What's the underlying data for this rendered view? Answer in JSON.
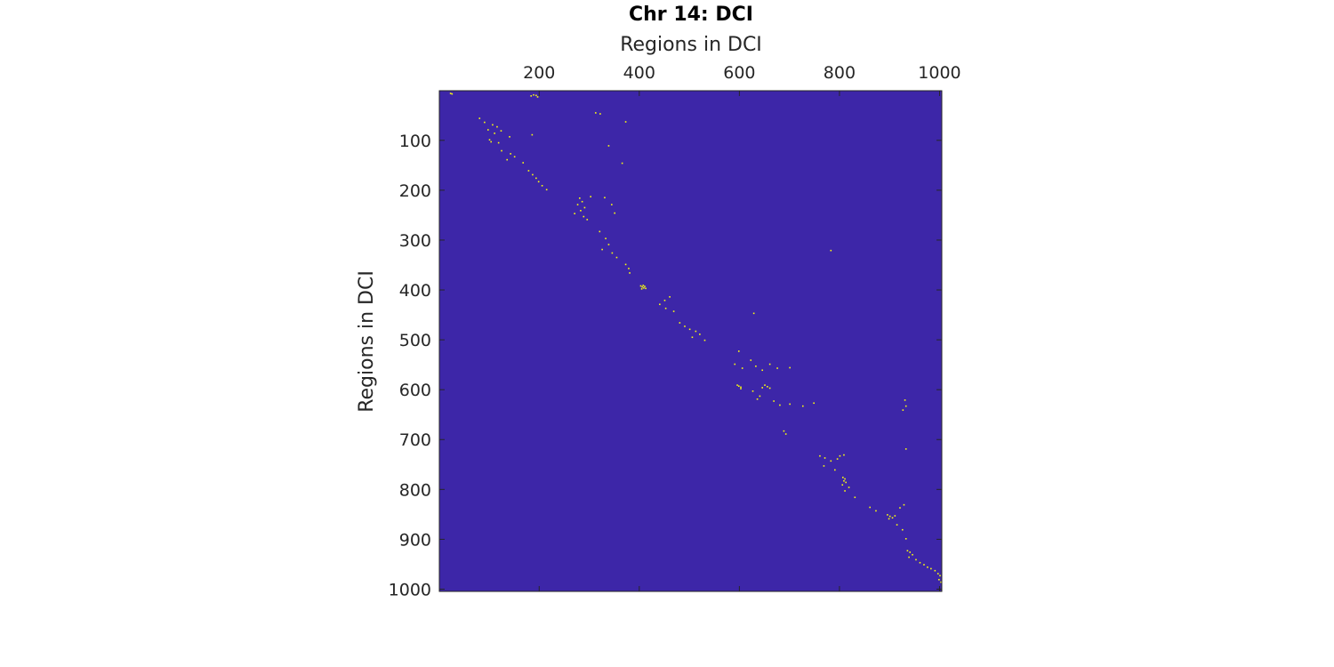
{
  "chart_data": {
    "type": "heatmap",
    "title": "Chr 14: DCI",
    "xlabel": "Regions in DCI",
    "ylabel": "Regions in DCI",
    "x_axis_location": "top",
    "y_axis_direction": "reverse",
    "xlim": [
      0.5,
      1004.5
    ],
    "ylim": [
      0.5,
      1004.5
    ],
    "x_ticks": [
      200,
      400,
      600,
      800,
      1000
    ],
    "x_tick_labels": [
      "200",
      "400",
      "600",
      "800",
      "1000"
    ],
    "y_ticks": [
      100,
      200,
      300,
      400,
      500,
      600,
      700,
      800,
      900,
      1000
    ],
    "y_tick_labels": [
      "100",
      "200",
      "300",
      "400",
      "500",
      "600",
      "700",
      "800",
      "900",
      "1000"
    ],
    "background_value": 0,
    "highlight_value": 1,
    "colors": {
      "background": "#3d26a8",
      "highlight": "#f9fb0e",
      "axis": "#262626"
    },
    "grid": false,
    "legend": "none",
    "highlighted_cells": [
      [
        22,
        5
      ],
      [
        25,
        6
      ],
      [
        188,
        8
      ],
      [
        193,
        9
      ],
      [
        183,
        10
      ],
      [
        196,
        12
      ],
      [
        312,
        44
      ],
      [
        321,
        46
      ],
      [
        80,
        55
      ],
      [
        90,
        63
      ],
      [
        106,
        68
      ],
      [
        115,
        72
      ],
      [
        97,
        78
      ],
      [
        123,
        80
      ],
      [
        110,
        85
      ],
      [
        140,
        92
      ],
      [
        100,
        98
      ],
      [
        103,
        102
      ],
      [
        118,
        104
      ],
      [
        185,
        88
      ],
      [
        372,
        62
      ],
      [
        124,
        120
      ],
      [
        142,
        126
      ],
      [
        150,
        132
      ],
      [
        135,
        138
      ],
      [
        167,
        144
      ],
      [
        338,
        110
      ],
      [
        365,
        145
      ],
      [
        178,
        160
      ],
      [
        186,
        168
      ],
      [
        193,
        175
      ],
      [
        198,
        182
      ],
      [
        205,
        190
      ],
      [
        214,
        198
      ],
      [
        280,
        215
      ],
      [
        285,
        222
      ],
      [
        276,
        228
      ],
      [
        290,
        234
      ],
      [
        282,
        240
      ],
      [
        270,
        246
      ],
      [
        288,
        252
      ],
      [
        295,
        258
      ],
      [
        302,
        212
      ],
      [
        330,
        214
      ],
      [
        344,
        228
      ],
      [
        350,
        245
      ],
      [
        320,
        282
      ],
      [
        332,
        296
      ],
      [
        338,
        308
      ],
      [
        325,
        318
      ],
      [
        345,
        325
      ],
      [
        354,
        334
      ],
      [
        372,
        348
      ],
      [
        378,
        356
      ],
      [
        380,
        365
      ],
      [
        402,
        391
      ],
      [
        405,
        393
      ],
      [
        408,
        395
      ],
      [
        404,
        397
      ],
      [
        410,
        392
      ],
      [
        407,
        390
      ],
      [
        412,
        396
      ],
      [
        460,
        413
      ],
      [
        450,
        420
      ],
      [
        440,
        428
      ],
      [
        452,
        436
      ],
      [
        468,
        442
      ],
      [
        480,
        465
      ],
      [
        490,
        472
      ],
      [
        500,
        478
      ],
      [
        512,
        482
      ],
      [
        520,
        488
      ],
      [
        505,
        494
      ],
      [
        530,
        500
      ],
      [
        628,
        446
      ],
      [
        598,
        522
      ],
      [
        590,
        548
      ],
      [
        605,
        556
      ],
      [
        622,
        540
      ],
      [
        632,
        552
      ],
      [
        645,
        560
      ],
      [
        660,
        548
      ],
      [
        675,
        556
      ],
      [
        700,
        555
      ],
      [
        595,
        590
      ],
      [
        598,
        592
      ],
      [
        602,
        594
      ],
      [
        650,
        590
      ],
      [
        655,
        593
      ],
      [
        660,
        596
      ],
      [
        626,
        602
      ],
      [
        640,
        612
      ],
      [
        668,
        622
      ],
      [
        680,
        630
      ],
      [
        700,
        628
      ],
      [
        726,
        632
      ],
      [
        748,
        626
      ],
      [
        635,
        618
      ],
      [
        688,
        682
      ],
      [
        692,
        688
      ],
      [
        930,
        620
      ],
      [
        932,
        632
      ],
      [
        926,
        640
      ],
      [
        760,
        732
      ],
      [
        770,
        736
      ],
      [
        782,
        742
      ],
      [
        795,
        738
      ],
      [
        800,
        732
      ],
      [
        808,
        730
      ],
      [
        768,
        752
      ],
      [
        790,
        760
      ],
      [
        806,
        775
      ],
      [
        810,
        778
      ],
      [
        808,
        782
      ],
      [
        812,
        785
      ],
      [
        805,
        790
      ],
      [
        818,
        795
      ],
      [
        810,
        802
      ],
      [
        830,
        815
      ],
      [
        860,
        835
      ],
      [
        872,
        842
      ],
      [
        895,
        850
      ],
      [
        900,
        853
      ],
      [
        905,
        856
      ],
      [
        910,
        852
      ],
      [
        898,
        858
      ],
      [
        920,
        836
      ],
      [
        928,
        830
      ],
      [
        914,
        870
      ],
      [
        925,
        880
      ],
      [
        932,
        898
      ],
      [
        935,
        922
      ],
      [
        940,
        925
      ],
      [
        945,
        930
      ],
      [
        938,
        935
      ],
      [
        952,
        940
      ],
      [
        960,
        946
      ],
      [
        968,
        950
      ],
      [
        975,
        955
      ],
      [
        982,
        958
      ],
      [
        990,
        962
      ],
      [
        996,
        968
      ],
      [
        1000,
        972
      ],
      [
        998,
        980
      ],
      [
        1002,
        985
      ],
      [
        932,
        718
      ],
      [
        782,
        320
      ],
      [
        645,
        595
      ],
      [
        602,
        597
      ]
    ]
  }
}
